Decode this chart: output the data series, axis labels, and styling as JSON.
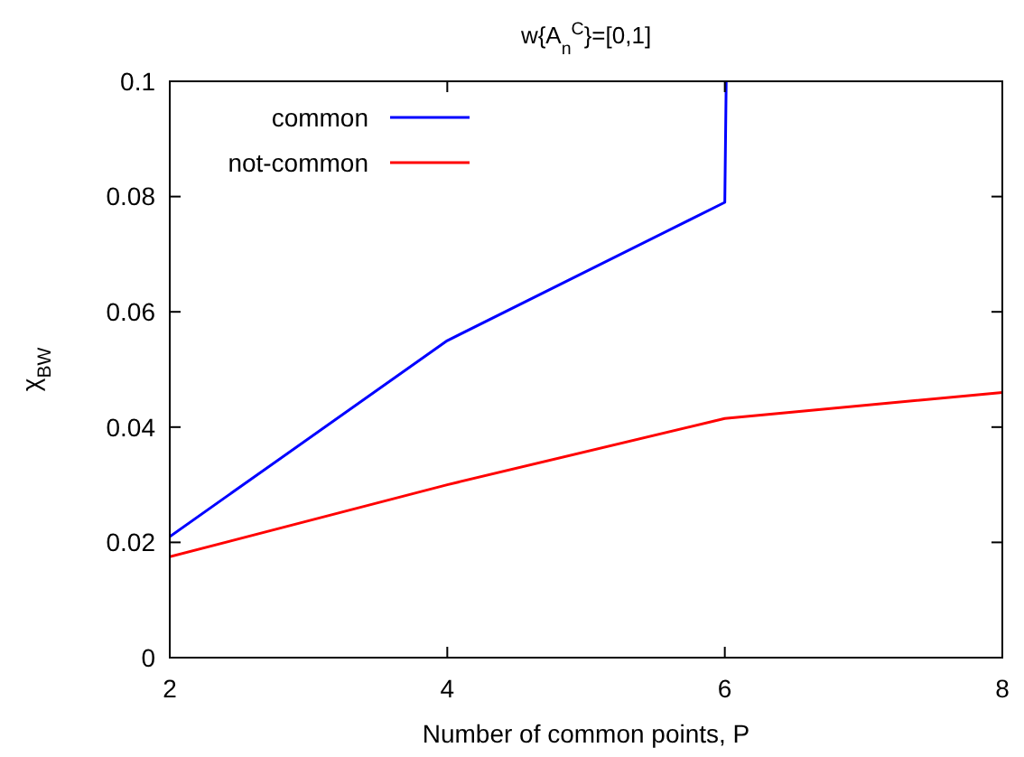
{
  "chart_data": {
    "type": "line",
    "title": "w{A$_{n}$$^{C}$}=[0,1]",
    "xlabel": "Number of common points, P",
    "ylabel": "χ$_{BW}$",
    "xlim": [
      2,
      8
    ],
    "xticks": [
      2,
      4,
      6,
      8
    ],
    "ylim": [
      0,
      0.1
    ],
    "yticks": [
      0,
      0.02,
      0.04,
      0.06,
      0.08,
      0.1
    ],
    "grid": false,
    "legend": "top left",
    "line_style": "solid",
    "marker": "none",
    "series": [
      {
        "name": "common",
        "color": "#0000ff",
        "x": [
          2,
          4,
          6,
          6.01
        ],
        "values": [
          0.021,
          0.055,
          0.079,
          0.1
        ]
      },
      {
        "name": "not-common",
        "color": "#ff0000",
        "x": [
          2,
          4,
          6,
          8
        ],
        "values": [
          0.0175,
          0.03,
          0.0415,
          0.046
        ]
      }
    ]
  }
}
